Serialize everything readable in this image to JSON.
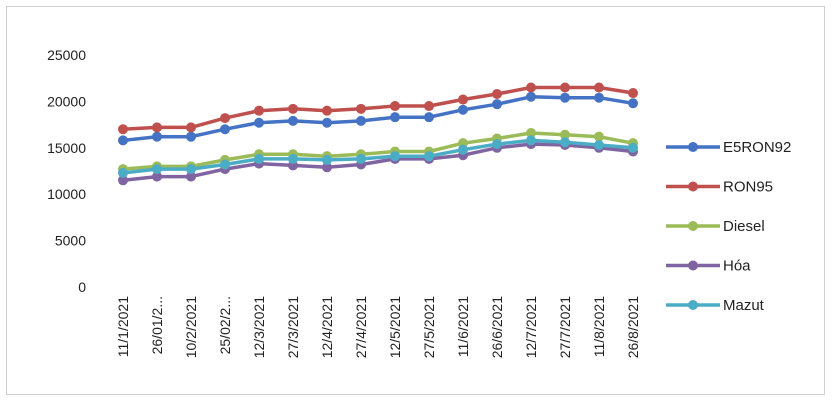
{
  "chart_data": {
    "type": "line",
    "title": "",
    "xlabel": "",
    "ylabel": "",
    "ylim": [
      0,
      25000
    ],
    "ytick_step": 5000,
    "yticks": [
      "0",
      "5000",
      "10000",
      "15000",
      "20000",
      "25000"
    ],
    "grid": false,
    "legend_position": "right",
    "categories": [
      "11/1/2021",
      "26/01/2...",
      "10/2/2021",
      "25/02/2...",
      "12/3/2021",
      "27/3/2021",
      "12/4/2021",
      "27/4/2021",
      "12/5/2021",
      "27/5/2021",
      "11/6/2021",
      "26/6/2021",
      "12/7/2021",
      "27/7/2021",
      "11/8/2021",
      "26/8/2021"
    ],
    "series": [
      {
        "name": "E5RON92",
        "color": "#4472C4",
        "values": [
          15800,
          16200,
          16200,
          17000,
          17700,
          17900,
          17700,
          17900,
          18300,
          18300,
          19100,
          19700,
          20500,
          20400,
          20400,
          19800
        ]
      },
      {
        "name": "RON95",
        "color": "#C0504D",
        "values": [
          17000,
          17200,
          17200,
          18200,
          19000,
          19200,
          19000,
          19200,
          19500,
          19500,
          20200,
          20800,
          21500,
          21500,
          21500,
          20900
        ]
      },
      {
        "name": "Diesel",
        "color": "#9BBB59",
        "values": [
          12700,
          13000,
          13000,
          13700,
          14300,
          14300,
          14100,
          14300,
          14600,
          14600,
          15500,
          16000,
          16600,
          16400,
          16200,
          15500
        ]
      },
      {
        "name": "Hóa",
        "color": "#8064A2",
        "values": [
          11500,
          11900,
          11900,
          12700,
          13300,
          13100,
          12900,
          13200,
          13800,
          13800,
          14200,
          15000,
          15400,
          15300,
          15000,
          14600
        ]
      },
      {
        "name": "Mazut",
        "color": "#4BACC6",
        "values": [
          12300,
          12700,
          12700,
          13200,
          13800,
          13800,
          13700,
          13800,
          14100,
          14100,
          14800,
          15400,
          15800,
          15600,
          15300,
          15000
        ]
      }
    ]
  }
}
